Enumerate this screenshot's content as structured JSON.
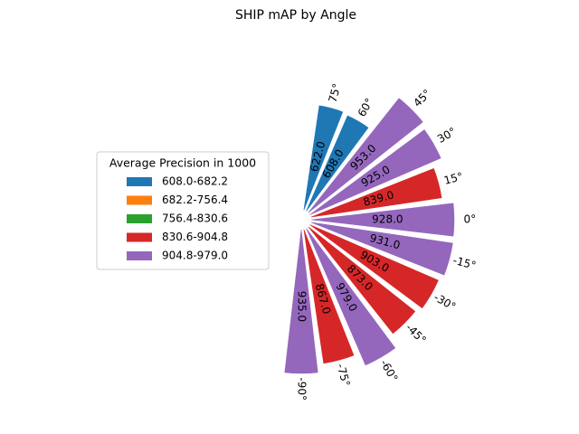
{
  "chart_data": {
    "type": "polar_bar",
    "title": "SHIP mAP by Angle",
    "categories": [
      "75°",
      "60°",
      "45°",
      "30°",
      "15°",
      "0°",
      "-15°",
      "-30°",
      "-45°",
      "-60°",
      "-75°",
      "-90°"
    ],
    "angles": [
      75,
      60,
      45,
      30,
      15,
      0,
      -15,
      -30,
      -45,
      -60,
      -75,
      -90
    ],
    "values": [
      622,
      608,
      953,
      925,
      839,
      928,
      931,
      903,
      873,
      979,
      867,
      935
    ],
    "value_labels": [
      "622.0",
      "608.0",
      "953.0",
      "925.0",
      "839.0",
      "928.0",
      "931.0",
      "903.0",
      "873.0",
      "979.0",
      "867.0",
      "935.0"
    ],
    "colors": [
      "#1f77b4",
      "#1f77b4",
      "#9467bd",
      "#9467bd",
      "#d62728",
      "#9467bd",
      "#9467bd",
      "#d62728",
      "#d62728",
      "#9467bd",
      "#d62728",
      "#9467bd"
    ],
    "legend": {
      "title": "Average Precision in 1000",
      "entries": [
        {
          "label": "608.0-682.2",
          "color": "#1f77b4"
        },
        {
          "label": "682.2-756.4",
          "color": "#ff7f0e"
        },
        {
          "label": "756.4-830.6",
          "color": "#2ca02c"
        },
        {
          "label": "830.6-904.8",
          "color": "#d62728"
        },
        {
          "label": "904.8-979.0",
          "color": "#9467bd"
        }
      ]
    }
  }
}
